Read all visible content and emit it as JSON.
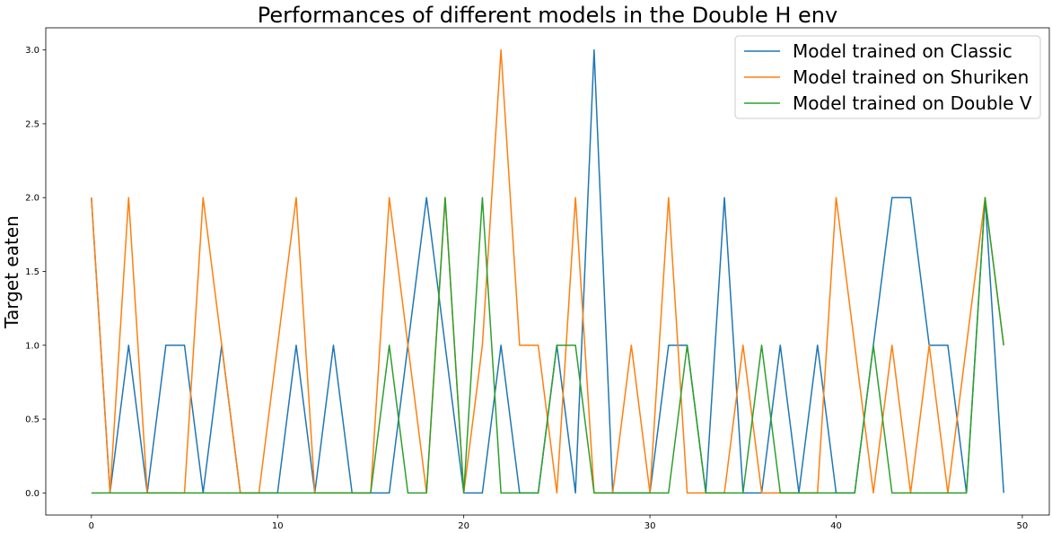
{
  "chart_data": {
    "type": "line",
    "title": "Performances of different models in the Double H env",
    "xlabel": "",
    "ylabel": "Target eaten",
    "xlim": [
      -2.45,
      51.45
    ],
    "ylim": [
      -0.15,
      3.15
    ],
    "xticks": [
      0,
      10,
      20,
      30,
      40,
      50
    ],
    "yticks": [
      0.0,
      0.5,
      1.0,
      1.5,
      2.0,
      2.5,
      3.0
    ],
    "ytick_labels": [
      "0.0",
      "0.5",
      "1.0",
      "1.5",
      "2.0",
      "2.5",
      "3.0"
    ],
    "grid": false,
    "legend_position": "top-right",
    "x": [
      0,
      1,
      2,
      3,
      4,
      5,
      6,
      7,
      8,
      9,
      10,
      11,
      12,
      13,
      14,
      15,
      16,
      17,
      18,
      19,
      20,
      21,
      22,
      23,
      24,
      25,
      26,
      27,
      28,
      29,
      30,
      31,
      32,
      33,
      34,
      35,
      36,
      37,
      38,
      39,
      40,
      41,
      42,
      43,
      44,
      45,
      46,
      47,
      48,
      49
    ],
    "series": [
      {
        "name": "Model trained on Classic",
        "color": "#1f77b4",
        "values": [
          2,
          0,
          1,
          0,
          1,
          1,
          0,
          1,
          0,
          0,
          0,
          1,
          0,
          1,
          0,
          0,
          0,
          1,
          2,
          1,
          0,
          0,
          1,
          0,
          0,
          1,
          0,
          3,
          0,
          0,
          0,
          1,
          1,
          0,
          2,
          0,
          0,
          1,
          0,
          1,
          0,
          0,
          1,
          2,
          2,
          1,
          1,
          0,
          2,
          0
        ]
      },
      {
        "name": "Model trained on Shuriken",
        "color": "#ff7f0e",
        "values": [
          2,
          0,
          2,
          0,
          0,
          0,
          2,
          1,
          0,
          0,
          1,
          2,
          0,
          0,
          0,
          0,
          2,
          1,
          0,
          2,
          0,
          1,
          3,
          1,
          1,
          0,
          2,
          0,
          0,
          1,
          0,
          2,
          0,
          0,
          0,
          1,
          0,
          0,
          0,
          0,
          2,
          1,
          0,
          1,
          0,
          1,
          0,
          1,
          2,
          1
        ]
      },
      {
        "name": "Model trained on Double V",
        "color": "#2ca02c",
        "values": [
          0,
          0,
          0,
          0,
          0,
          0,
          0,
          0,
          0,
          0,
          0,
          0,
          0,
          0,
          0,
          0,
          1,
          0,
          0,
          2,
          0,
          2,
          0,
          0,
          0,
          1,
          1,
          0,
          0,
          0,
          0,
          0,
          1,
          0,
          0,
          0,
          1,
          0,
          0,
          0,
          0,
          0,
          1,
          0,
          0,
          0,
          0,
          0,
          2,
          1
        ]
      }
    ]
  }
}
